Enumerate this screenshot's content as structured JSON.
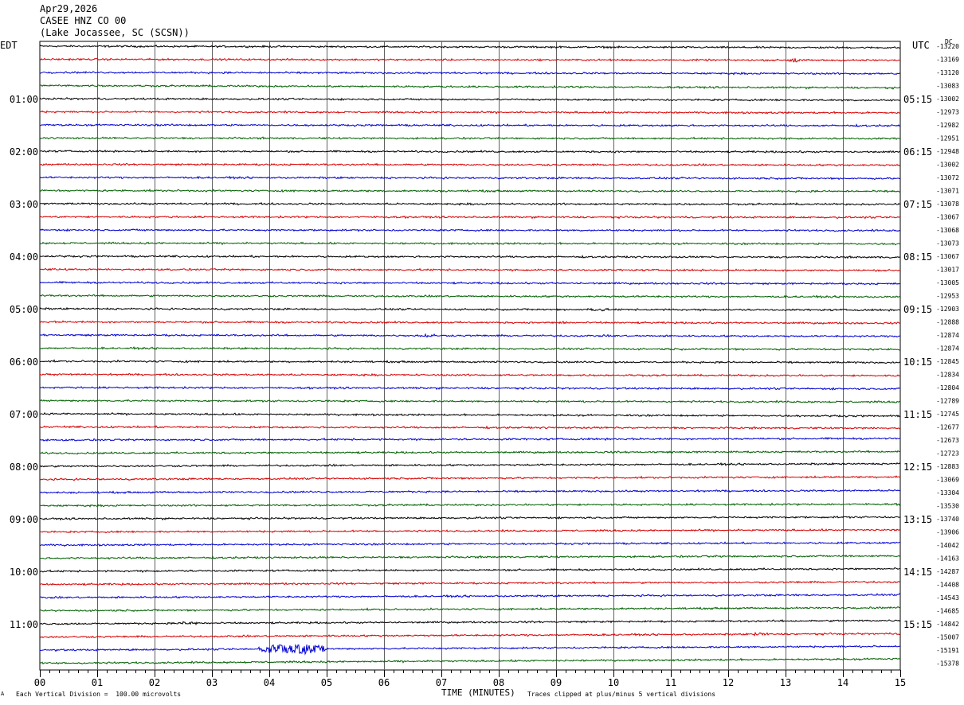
{
  "header": {
    "date": "Apr29,2026",
    "station": "CASEE HNZ CO 00",
    "location": "(Lake Jocassee, SC (SCSN))"
  },
  "left_tz": "EDT",
  "right_tz": "UTC",
  "dc_label": "DC",
  "footer": {
    "left_mark": "A",
    "scale_note": "Each Vertical Division =  100.00 microvolts",
    "xlabel": "TIME (MINUTES)",
    "clip_note": "Traces clipped at plus/minus 5 vertical divisions"
  },
  "chart_data": {
    "type": "line",
    "xlabel": "TIME (MINUTES)",
    "xlim": [
      0,
      15
    ],
    "x_ticks": [
      "00",
      "01",
      "02",
      "03",
      "04",
      "05",
      "06",
      "07",
      "08",
      "09",
      "10",
      "11",
      "12",
      "13",
      "14",
      "15"
    ],
    "trace_colors": [
      "#000000",
      "#d40000",
      "#0000d0",
      "#006000"
    ],
    "trace_count": 48,
    "left_hour_labels": [
      "01:00",
      "02:00",
      "03:00",
      "04:00",
      "05:00",
      "06:00",
      "07:00",
      "08:00",
      "09:00",
      "10:00",
      "11:00"
    ],
    "right_hour_labels": [
      "05:15",
      "06:15",
      "07:15",
      "08:15",
      "09:15",
      "10:15",
      "11:15",
      "12:15",
      "13:15",
      "14:15",
      "15:15"
    ],
    "dc_offsets": [
      "-13220",
      "-13169",
      "-13120",
      "-13083",
      "-13002",
      "-12973",
      "-12982",
      "-12951",
      "-12948",
      "-13002",
      "-13072",
      "-13071",
      "-13078",
      "-13067",
      "-13068",
      "-13073",
      "-13067",
      "-13017",
      "-13005",
      "-12953",
      "-12903",
      "-12888",
      "-12874",
      "-12874",
      "-12845",
      "-12834",
      "-12804",
      "-12789",
      "-12745",
      "-12677",
      "-12673",
      "-12723",
      "-12883",
      "-13069",
      "-13304",
      "-13530",
      "-13740",
      "-13906",
      "-14042",
      "-14163",
      "-14287",
      "-14408",
      "-14543",
      "-14685",
      "-14842",
      "-15007",
      "-15191",
      "-15378"
    ],
    "trace_slopes_divisions": [
      -0.6,
      -0.4,
      -0.5,
      -0.9,
      -0.6,
      -0.4,
      -0.3,
      -0.2,
      -0.3,
      -0.3,
      -0.4,
      -0.3,
      -0.2,
      -0.2,
      -0.2,
      -0.3,
      -0.4,
      -0.4,
      -0.5,
      -0.5,
      -0.5,
      -0.5,
      -0.5,
      -0.5,
      -0.5,
      -0.5,
      -0.5,
      -0.5,
      -0.9,
      -0.5,
      0.6,
      0.6,
      1.0,
      1.0,
      0.8,
      0.6,
      0.7,
      0.8,
      0.9,
      0.9,
      1.0,
      1.0,
      1.1,
      1.2,
      1.3,
      1.3,
      1.5,
      1.7
    ],
    "events": [
      {
        "trace": 1,
        "start_min": 13.0,
        "end_min": 13.3,
        "amplitude_div": 0.7
      },
      {
        "trace": 20,
        "start_min": 9.5,
        "end_min": 9.9,
        "amplitude_div": 0.6
      },
      {
        "trace": 21,
        "start_min": 9.0,
        "end_min": 9.2,
        "amplitude_div": 0.4
      },
      {
        "trace": 22,
        "start_min": 6.6,
        "end_min": 6.9,
        "amplitude_div": 0.5
      },
      {
        "trace": 44,
        "start_min": 2.4,
        "end_min": 2.8,
        "amplitude_div": 0.6
      },
      {
        "trace": 45,
        "start_min": 12.4,
        "end_min": 12.7,
        "amplitude_div": 0.5
      },
      {
        "trace": 46,
        "start_min": 3.8,
        "end_min": 5.0,
        "amplitude_div": 2.0
      }
    ]
  }
}
